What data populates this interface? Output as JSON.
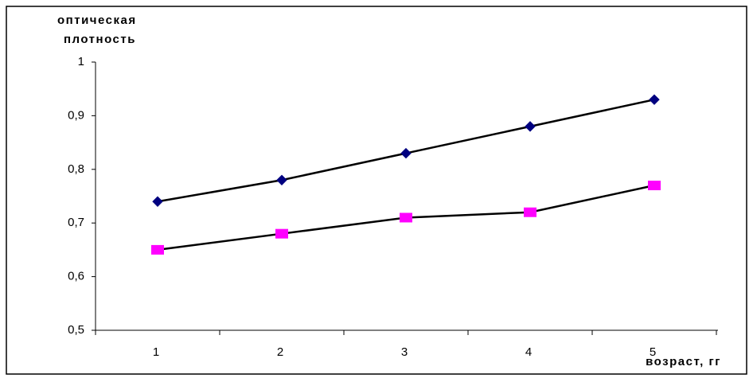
{
  "chart_data": {
    "type": "line",
    "y_label": [
      "оптическая",
      "плотность"
    ],
    "x_label": "возраст, гг",
    "categories": [
      "1",
      "2",
      "3",
      "4",
      "5"
    ],
    "series": [
      {
        "color": "#000080",
        "marker": "diamond",
        "line_color": "#000000",
        "values": [
          0.74,
          0.78,
          0.83,
          0.88,
          0.93
        ]
      },
      {
        "color": "#ff00ff",
        "marker": "square",
        "line_color": "#000000",
        "values": [
          0.65,
          0.68,
          0.71,
          0.72,
          0.77
        ]
      }
    ],
    "ylim": [
      0.5,
      1
    ],
    "yticks": [
      {
        "value": 0.5,
        "label": "0,5"
      },
      {
        "value": 0.6,
        "label": "0,6"
      },
      {
        "value": 0.7,
        "label": "0,7"
      },
      {
        "value": 0.8,
        "label": "0,8"
      },
      {
        "value": 0.9,
        "label": "0,9"
      },
      1
    ],
    "grid": false
  }
}
